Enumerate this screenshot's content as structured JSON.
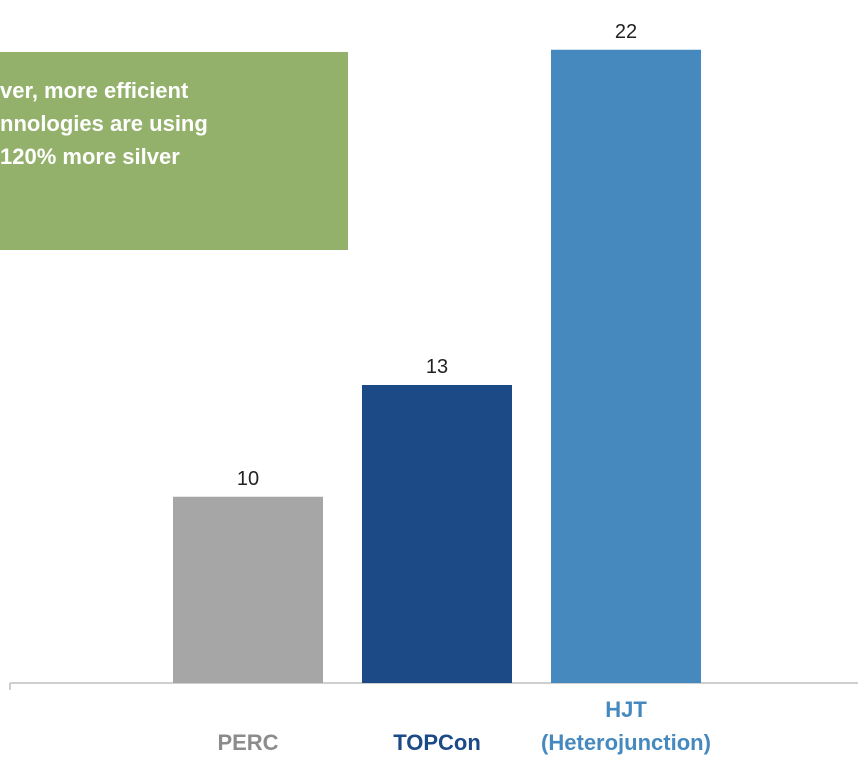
{
  "chart_data": {
    "type": "bar",
    "annotation": "ver, more efficient\nnnologies are using\n120% more silver",
    "annotation_color": "#93b16b",
    "categories": [
      "PERC",
      "TOPCon",
      "HJT\n(Heterojunction)"
    ],
    "values": [
      10,
      13,
      22
    ],
    "colors": [
      "#a6a6a6",
      "#1b4a87",
      "#4689be"
    ],
    "label_colors": [
      "#8c8c8c",
      "#1b4a87",
      "#4689be"
    ],
    "ylim": [
      5,
      23
    ]
  }
}
